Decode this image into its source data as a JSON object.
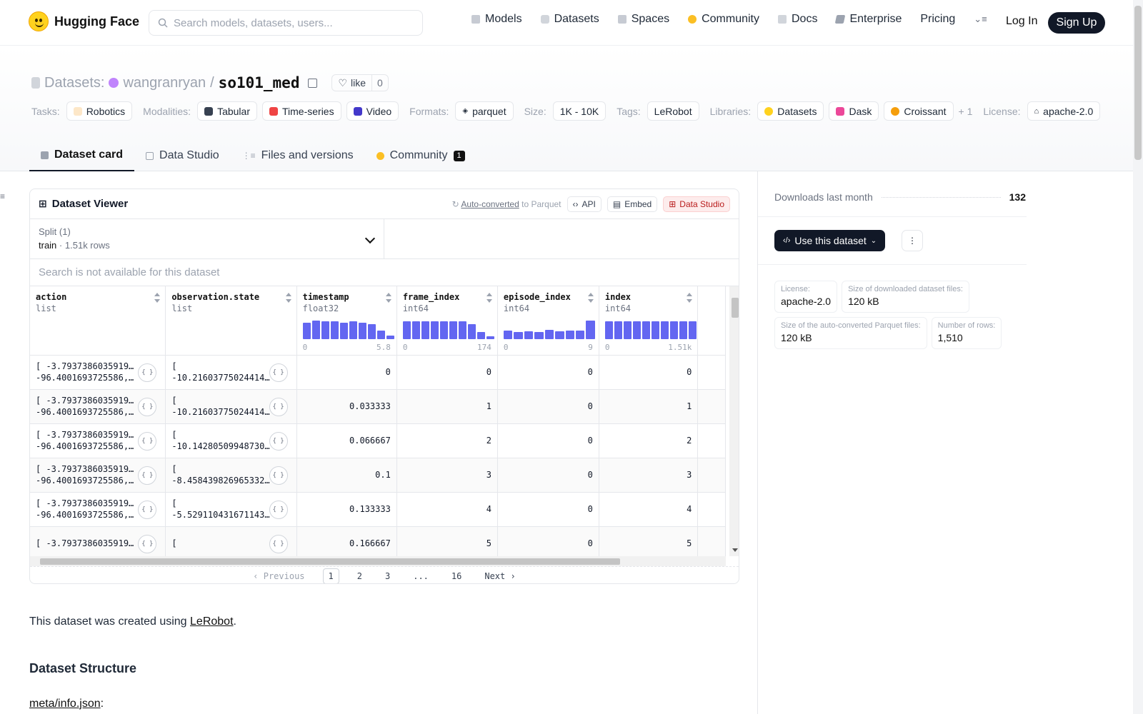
{
  "nav": {
    "logo_text": "Hugging Face",
    "search_placeholder": "Search models, datasets, users...",
    "links": [
      "Models",
      "Datasets",
      "Spaces",
      "Community",
      "Docs",
      "Enterprise",
      "Pricing"
    ],
    "login": "Log In",
    "signup": "Sign Up"
  },
  "header": {
    "section": "Datasets:",
    "owner": "wangranryan",
    "slash": "/",
    "name": "so101_med",
    "like_label": "like",
    "like_count": "0"
  },
  "tags": {
    "tasks_label": "Tasks:",
    "tasks": "Robotics",
    "modalities_label": "Modalities:",
    "modalities": [
      "Tabular",
      "Time-series",
      "Video"
    ],
    "formats_label": "Formats:",
    "formats": "parquet",
    "size_label": "Size:",
    "size": "1K - 10K",
    "tags_label": "Tags:",
    "tag": "LeRobot",
    "libraries_label": "Libraries:",
    "libraries": [
      "Datasets",
      "Dask",
      "Croissant"
    ],
    "more": "+ 1",
    "license_label": "License:",
    "license": "apache-2.0"
  },
  "tabs": {
    "card": "Dataset card",
    "studio": "Data Studio",
    "files": "Files and versions",
    "community": "Community",
    "community_count": "1"
  },
  "viewer": {
    "title": "Dataset Viewer",
    "auto_converted": "Auto-converted",
    "to_parquet": "to Parquet",
    "api": "API",
    "embed": "Embed",
    "data_studio": "Data Studio",
    "split_label": "Split (1)",
    "split_name": "train",
    "split_rows": "1.51k rows",
    "search_na": "Search is not available for this dataset",
    "columns": [
      {
        "name": "action",
        "type": "list"
      },
      {
        "name": "observation.state",
        "type": "list"
      },
      {
        "name": "timestamp",
        "type": "float32",
        "min": "0",
        "max": "5.8",
        "hist": [
          0.9,
          1.0,
          0.95,
          0.95,
          0.9,
          0.95,
          0.9,
          0.8,
          0.45,
          0.2
        ]
      },
      {
        "name": "frame_index",
        "type": "int64",
        "min": "0",
        "max": "174",
        "hist": [
          0.95,
          0.95,
          0.95,
          0.95,
          0.95,
          0.95,
          0.95,
          0.8,
          0.4,
          0.15
        ]
      },
      {
        "name": "episode_index",
        "type": "int64",
        "min": "0",
        "max": "9",
        "hist": [
          0.45,
          0.38,
          0.42,
          0.38,
          0.5,
          0.42,
          0.45,
          0.45,
          1.0
        ]
      },
      {
        "name": "index",
        "type": "int64",
        "min": "0",
        "max": "1.51k",
        "hist": [
          0.95,
          0.95,
          0.95,
          0.95,
          0.95,
          0.95,
          0.95,
          0.95,
          0.95,
          0.95
        ]
      }
    ],
    "rows": [
      {
        "action_1": "[ -3.793738603591919,",
        "action_2": "-96.4001693725586,…",
        "obs_1": "[",
        "obs_2": "-10.21603775024414,…",
        "timestamp": "0",
        "frame_index": "0",
        "episode_index": "0",
        "index": "0"
      },
      {
        "action_1": "[ -3.793738603591919,",
        "action_2": "-96.4001693725586,…",
        "obs_1": "[",
        "obs_2": "-10.21603775024414,…",
        "timestamp": "0.033333",
        "frame_index": "1",
        "episode_index": "0",
        "index": "1"
      },
      {
        "action_1": "[ -3.793738603591919,",
        "action_2": "-96.4001693725586,…",
        "obs_1": "[",
        "obs_2": "-10.142805099487305…",
        "timestamp": "0.066667",
        "frame_index": "2",
        "episode_index": "0",
        "index": "2"
      },
      {
        "action_1": "[ -3.793738603591919,",
        "action_2": "-96.4001693725586,…",
        "obs_1": "[",
        "obs_2": "-8.458439826965332,…",
        "timestamp": "0.1",
        "frame_index": "3",
        "episode_index": "0",
        "index": "3"
      },
      {
        "action_1": "[ -3.793738603591919,",
        "action_2": "-96.4001693725586,…",
        "obs_1": "[",
        "obs_2": "-5.529110431671143,…",
        "timestamp": "0.133333",
        "frame_index": "4",
        "episode_index": "0",
        "index": "4"
      },
      {
        "action_1": "[ -3.793738603591919,",
        "action_2": "",
        "obs_1": "[",
        "obs_2": "",
        "timestamp": "0.166667",
        "frame_index": "5",
        "episode_index": "0",
        "index": "5"
      }
    ],
    "pager": {
      "prev": "Previous",
      "pages": [
        "1",
        "2",
        "3",
        "...",
        "16"
      ],
      "next": "Next"
    }
  },
  "sidebar": {
    "downloads_label": "Downloads last month",
    "downloads": "132",
    "use_button": "Use this dataset",
    "info": [
      {
        "k": "License:",
        "v": "apache-2.0"
      },
      {
        "k": "Size of downloaded dataset files:",
        "v": "120 kB"
      },
      {
        "k": "Size of the auto-converted Parquet files:",
        "v": "120 kB"
      },
      {
        "k": "Number of rows:",
        "v": "1,510"
      }
    ]
  },
  "body": {
    "created_prefix": "This dataset was created using",
    "created_link": "LeRobot",
    "created_suffix": ".",
    "structure_heading": "Dataset Structure",
    "meta_link": "meta/info.json",
    "meta_suffix": ":"
  },
  "colors": {
    "accent": "#6366f1",
    "dark": "#111827",
    "brand": "#ffd21e"
  }
}
